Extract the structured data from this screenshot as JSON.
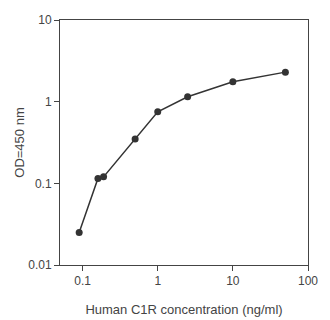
{
  "chart_data": {
    "type": "line",
    "x": [
      0.09,
      0.16,
      0.19,
      0.5,
      1.0,
      2.5,
      10.0,
      50.0
    ],
    "values": [
      0.025,
      0.115,
      0.12,
      0.35,
      0.75,
      1.15,
      1.75,
      2.3
    ],
    "xlabel": "Human C1R concentration (ng/ml)",
    "ylabel": "OD=450 nm",
    "xlim": [
      0.05,
      100
    ],
    "ylim": [
      0.01,
      10
    ],
    "xticks": [
      0.1,
      1,
      10,
      100
    ],
    "yticks": [
      0.01,
      0.1,
      1,
      10
    ],
    "log": true,
    "grid": false,
    "color": "#333333",
    "marker": "circle",
    "line_style": "solid"
  }
}
